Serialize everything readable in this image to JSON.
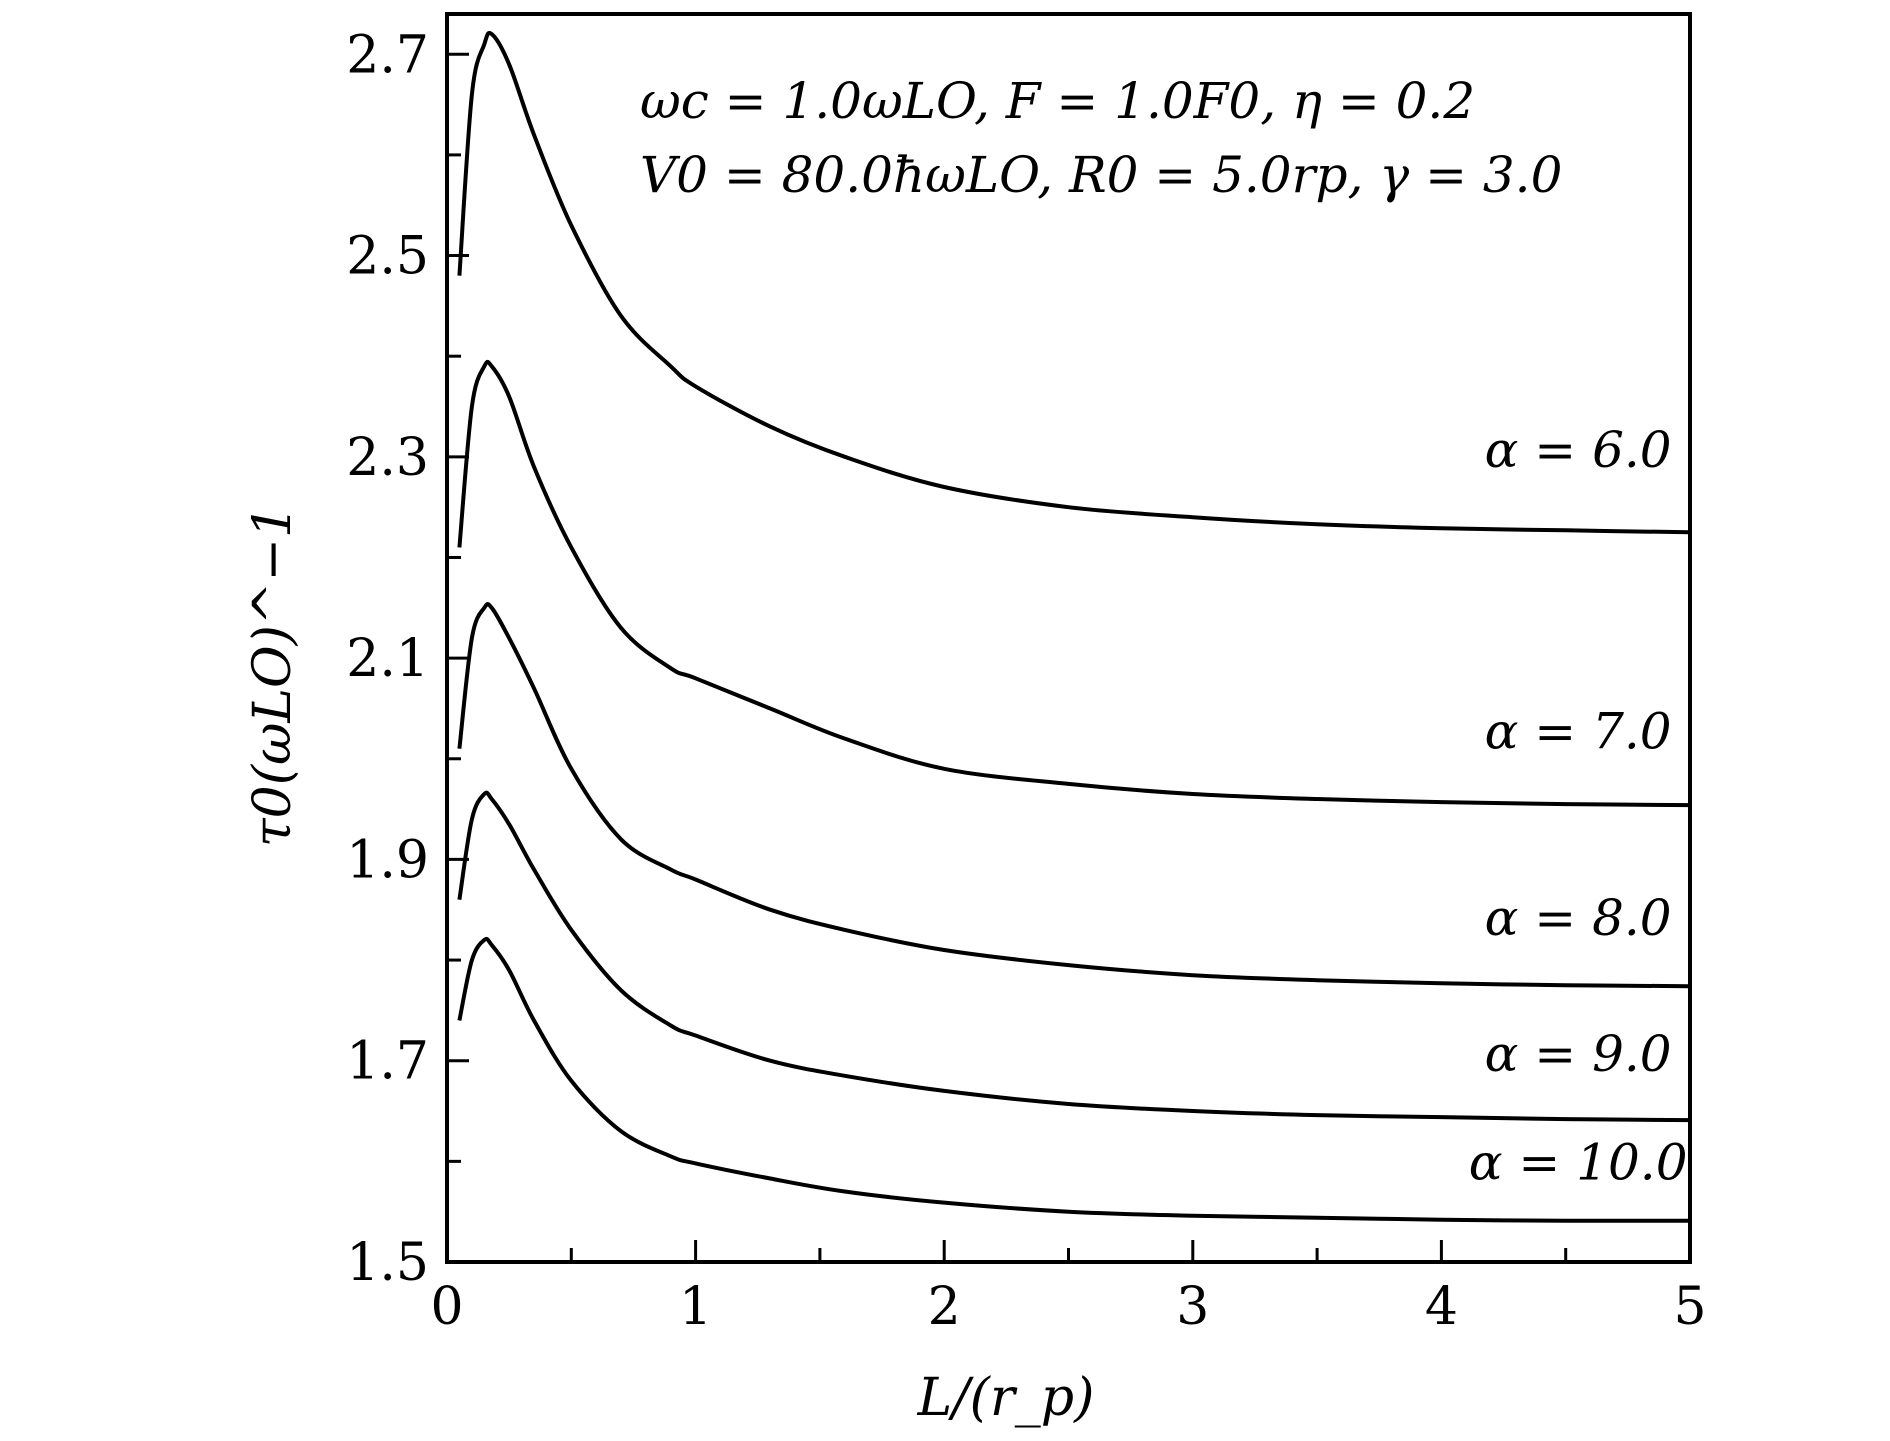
{
  "chart_data": {
    "type": "line",
    "xlabel": "L/(r_p)",
    "ylabel": "τ0(ωLO)^−1",
    "xlim": [
      0,
      5
    ],
    "ylim": [
      1.5,
      2.74
    ],
    "x_ticks": [
      0,
      1,
      2,
      3,
      4,
      5
    ],
    "x_tick_labels": [
      "0",
      "1",
      "2",
      "3",
      "4",
      "5"
    ],
    "y_ticks": [
      1.5,
      1.7,
      1.9,
      2.1,
      2.3,
      2.5,
      2.7
    ],
    "y_tick_labels": [
      "1.5",
      "1.7",
      "1.9",
      "2.1",
      "2.3",
      "2.5",
      "2.7"
    ],
    "grid": false,
    "annotations": [
      "ωc = 1.0ωLO,  F = 1.0F0,  η = 0.2",
      "V0 = 80.0ħωLO,  R0 = 5.0rp,  γ = 3.0"
    ],
    "series": [
      {
        "name": "α = 6.0",
        "x": [
          0.05,
          0.1,
          0.15,
          0.18,
          0.25,
          0.35,
          0.5,
          0.7,
          0.9,
          1.0,
          1.3,
          1.6,
          2.0,
          2.5,
          3.0,
          3.5,
          4.0,
          4.5,
          5.0
        ],
        "y": [
          2.48,
          2.66,
          2.71,
          2.72,
          2.69,
          2.62,
          2.53,
          2.44,
          2.39,
          2.37,
          2.33,
          2.3,
          2.27,
          2.25,
          2.24,
          2.233,
          2.229,
          2.227,
          2.225
        ]
      },
      {
        "name": "α = 7.0",
        "x": [
          0.05,
          0.1,
          0.15,
          0.18,
          0.25,
          0.35,
          0.5,
          0.7,
          0.9,
          1.0,
          1.3,
          1.6,
          2.0,
          2.5,
          3.0,
          3.5,
          4.0,
          4.5,
          5.0
        ],
        "y": [
          2.21,
          2.35,
          2.39,
          2.39,
          2.36,
          2.29,
          2.21,
          2.13,
          2.09,
          2.08,
          2.05,
          2.02,
          1.99,
          1.975,
          1.965,
          1.96,
          1.957,
          1.955,
          1.954
        ]
      },
      {
        "name": "α = 8.0",
        "x": [
          0.05,
          0.1,
          0.15,
          0.18,
          0.25,
          0.35,
          0.5,
          0.7,
          0.9,
          1.0,
          1.3,
          1.6,
          2.0,
          2.5,
          3.0,
          3.5,
          4.0,
          4.5,
          5.0
        ],
        "y": [
          2.01,
          2.12,
          2.15,
          2.15,
          2.12,
          2.07,
          1.99,
          1.92,
          1.89,
          1.88,
          1.85,
          1.83,
          1.81,
          1.795,
          1.785,
          1.78,
          1.777,
          1.775,
          1.774
        ]
      },
      {
        "name": "α = 9.0",
        "x": [
          0.05,
          0.1,
          0.15,
          0.18,
          0.25,
          0.35,
          0.5,
          0.7,
          0.9,
          1.0,
          1.3,
          1.6,
          2.0,
          2.5,
          3.0,
          3.5,
          4.0,
          4.5,
          5.0
        ],
        "y": [
          1.86,
          1.94,
          1.965,
          1.96,
          1.935,
          1.89,
          1.83,
          1.77,
          1.735,
          1.725,
          1.7,
          1.685,
          1.67,
          1.657,
          1.65,
          1.646,
          1.644,
          1.642,
          1.641
        ]
      },
      {
        "name": "α = 10.0",
        "x": [
          0.05,
          0.1,
          0.15,
          0.18,
          0.25,
          0.35,
          0.5,
          0.7,
          0.9,
          1.0,
          1.3,
          1.6,
          2.0,
          2.5,
          3.0,
          3.5,
          4.0,
          4.5,
          5.0
        ],
        "y": [
          1.74,
          1.8,
          1.82,
          1.815,
          1.79,
          1.74,
          1.68,
          1.63,
          1.605,
          1.598,
          1.583,
          1.57,
          1.559,
          1.55,
          1.546,
          1.544,
          1.542,
          1.541,
          1.541
        ]
      }
    ],
    "curve_labels": [
      {
        "text": "α = 6.0",
        "anchor_x": 4.55,
        "anchor_y": 2.29
      },
      {
        "text": "α = 7.0",
        "anchor_x": 4.55,
        "anchor_y": 2.01
      },
      {
        "text": "α = 8.0",
        "anchor_x": 4.55,
        "anchor_y": 1.825
      },
      {
        "text": "α = 9.0",
        "anchor_x": 4.55,
        "anchor_y": 1.69
      },
      {
        "text": "α = 10.0",
        "anchor_x": 4.55,
        "anchor_y": 1.582
      }
    ]
  }
}
